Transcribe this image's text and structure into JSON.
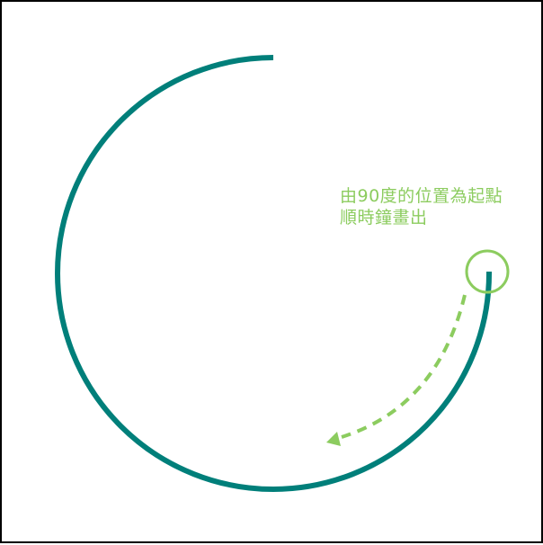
{
  "colors": {
    "arc": "#007f7a",
    "accent": "#8ccc5f",
    "frame": "#000000",
    "background": "#ffffff"
  },
  "annotation": {
    "line1": "由90度的位置為起點",
    "line2": "順時鐘畫出"
  }
}
